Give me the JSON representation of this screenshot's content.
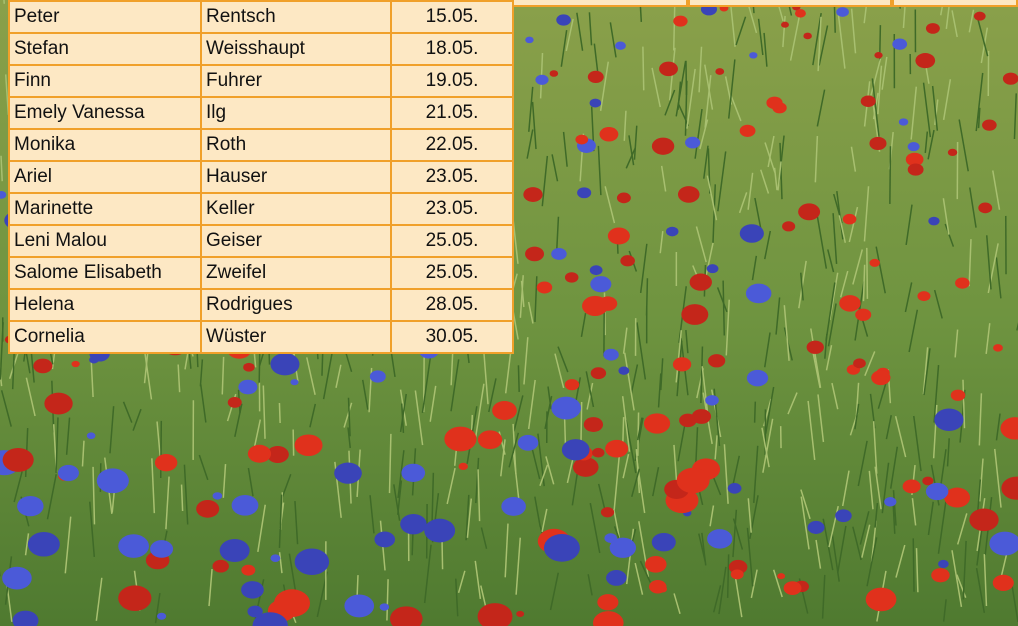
{
  "table": {
    "rows": [
      [
        "Peter",
        "Rentsch",
        "15.05."
      ],
      [
        "Stefan",
        "Weisshaupt",
        "18.05."
      ],
      [
        "Finn",
        "Fuhrer",
        "19.05."
      ],
      [
        "Emely Vanessa",
        "Ilg",
        "21.05."
      ],
      [
        "Monika",
        "Roth",
        "22.05."
      ],
      [
        "Ariel",
        "Hauser",
        "23.05."
      ],
      [
        "Marinette",
        "Keller",
        "23.05."
      ],
      [
        "Leni Malou",
        "Geiser",
        "25.05."
      ],
      [
        "Salome Elisabeth",
        "Zweifel",
        "25.05."
      ],
      [
        "Helena",
        "Rodrigues",
        "28.05."
      ],
      [
        "Cornelia",
        "Wüster",
        "30.05."
      ]
    ]
  }
}
